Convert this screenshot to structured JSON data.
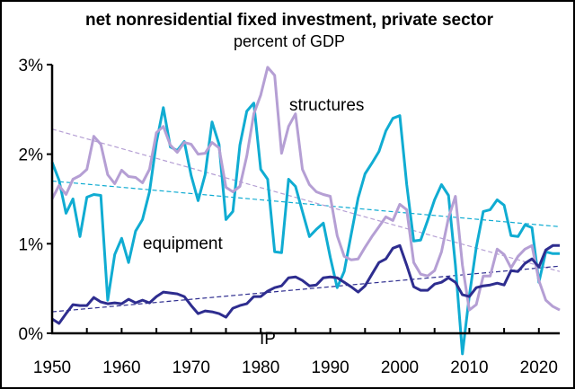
{
  "chart_data": {
    "type": "line",
    "title": "net nonresidential fixed investment, private sector",
    "subtitle": "percent of GDP",
    "xlim": [
      1950,
      2023
    ],
    "ylim": [
      0,
      3
    ],
    "x_tick_labels": [
      "1950",
      "1960",
      "1970",
      "1980",
      "1990",
      "2000",
      "2010",
      "2020"
    ],
    "x_ticks": [
      1950,
      1960,
      1970,
      1980,
      1990,
      2000,
      2010,
      2020
    ],
    "y_tick_labels": [
      "0%",
      "1%",
      "2%",
      "3%"
    ],
    "y_ticks": [
      0,
      1,
      2,
      3
    ],
    "x_start": 1950,
    "grid": false,
    "legend": "none (inline labels)",
    "series": [
      {
        "name": "equipment",
        "color": "#10acd2",
        "trend": [
          1.7,
          1.19
        ],
        "values": [
          1.91,
          1.71,
          1.34,
          1.5,
          1.08,
          1.52,
          1.55,
          1.54,
          0.37,
          0.88,
          1.06,
          0.79,
          1.14,
          1.27,
          1.58,
          2.13,
          2.52,
          2.08,
          2.04,
          2.14,
          1.76,
          1.48,
          1.77,
          2.36,
          2.11,
          1.27,
          1.36,
          2.1,
          2.48,
          2.57,
          1.83,
          1.72,
          0.91,
          0.9,
          1.72,
          1.64,
          1.36,
          1.08,
          1.16,
          1.23,
          0.85,
          0.51,
          0.69,
          1.1,
          1.51,
          1.78,
          1.9,
          2.03,
          2.26,
          2.4,
          2.43,
          1.66,
          1.03,
          1.04,
          1.26,
          1.49,
          1.66,
          1.54,
          0.76,
          -0.23,
          0.42,
          0.96,
          1.36,
          1.38,
          1.49,
          1.43,
          1.09,
          1.08,
          1.21,
          1.18,
          0.57,
          0.91,
          0.89,
          0.89
        ]
      },
      {
        "name": "structures",
        "color": "#b59fd4",
        "trend": [
          2.28,
          0.69
        ],
        "values": [
          1.5,
          1.65,
          1.55,
          1.72,
          1.76,
          1.83,
          2.2,
          2.11,
          1.77,
          1.67,
          1.82,
          1.75,
          1.74,
          1.68,
          1.83,
          2.24,
          2.31,
          2.1,
          2.02,
          2.13,
          2.11,
          2.0,
          2.01,
          2.13,
          2.07,
          1.63,
          1.58,
          1.64,
          1.98,
          2.45,
          2.66,
          2.97,
          2.88,
          2.01,
          2.31,
          2.45,
          1.83,
          1.66,
          1.58,
          1.55,
          1.53,
          1.09,
          0.86,
          0.82,
          0.83,
          0.96,
          1.08,
          1.19,
          1.3,
          1.26,
          1.44,
          1.38,
          0.79,
          0.66,
          0.64,
          0.7,
          0.91,
          1.29,
          1.53,
          0.76,
          0.26,
          0.32,
          0.64,
          0.64,
          0.94,
          0.88,
          0.73,
          0.86,
          0.94,
          0.98,
          0.59,
          0.37,
          0.3,
          0.26
        ]
      },
      {
        "name": "IP",
        "color": "#2e2d8f",
        "trend": [
          0.24,
          0.75
        ],
        "values": [
          0.16,
          0.11,
          0.22,
          0.32,
          0.31,
          0.31,
          0.4,
          0.35,
          0.33,
          0.34,
          0.33,
          0.38,
          0.34,
          0.37,
          0.34,
          0.41,
          0.46,
          0.45,
          0.44,
          0.41,
          0.31,
          0.22,
          0.25,
          0.24,
          0.22,
          0.18,
          0.28,
          0.31,
          0.33,
          0.41,
          0.41,
          0.47,
          0.51,
          0.53,
          0.62,
          0.63,
          0.59,
          0.53,
          0.54,
          0.62,
          0.63,
          0.62,
          0.57,
          0.52,
          0.46,
          0.53,
          0.66,
          0.79,
          0.83,
          0.95,
          0.98,
          0.76,
          0.52,
          0.48,
          0.48,
          0.55,
          0.57,
          0.62,
          0.57,
          0.43,
          0.41,
          0.51,
          0.53,
          0.54,
          0.56,
          0.54,
          0.7,
          0.69,
          0.78,
          0.83,
          0.74,
          0.93,
          0.98,
          0.98
        ]
      }
    ]
  }
}
